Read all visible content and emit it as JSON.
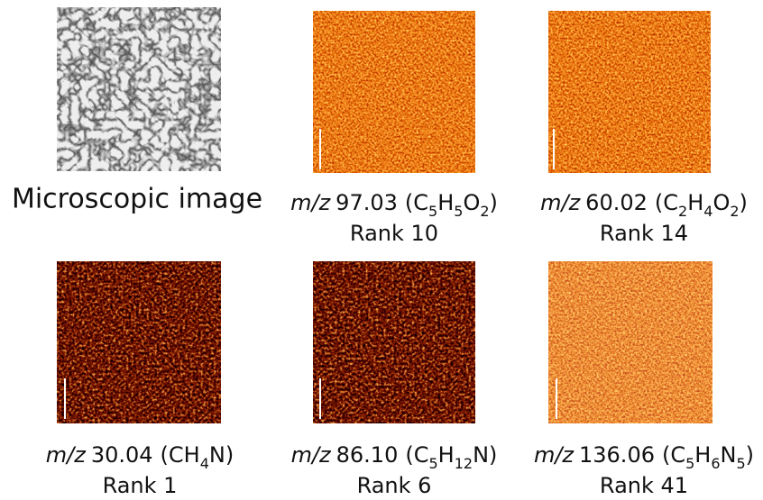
{
  "panels": [
    {
      "caption": "Microscopic image"
    },
    {
      "mz_label": "m/z",
      "mz": "97.03",
      "formula": [
        {
          "t": "(C",
          "sub": "5"
        },
        {
          "t": "H",
          "sub": "5"
        },
        {
          "t": "O",
          "sub": "2"
        },
        {
          "t": ")"
        }
      ],
      "rank": "Rank 10"
    },
    {
      "mz_label": "m/z",
      "mz": "60.02",
      "formula": [
        {
          "t": "(C",
          "sub": "2"
        },
        {
          "t": "H",
          "sub": "4"
        },
        {
          "t": "O",
          "sub": "2"
        },
        {
          "t": ")"
        }
      ],
      "rank": "Rank 14"
    },
    {
      "mz_label": "m/z",
      "mz": "30.04",
      "formula": [
        {
          "t": "(CH",
          "sub": "4"
        },
        {
          "t": "N)"
        }
      ],
      "rank": "Rank 1"
    },
    {
      "mz_label": "m/z",
      "mz": "86.10",
      "formula": [
        {
          "t": "(C",
          "sub": "5"
        },
        {
          "t": "H",
          "sub": "12"
        },
        {
          "t": "N)"
        }
      ],
      "rank": "Rank 6"
    },
    {
      "mz_label": "m/z",
      "mz": "136.06",
      "formula": [
        {
          "t": "(C",
          "sub": "5"
        },
        {
          "t": "H",
          "sub": "6"
        },
        {
          "t": "N",
          "sub": "5"
        },
        {
          "t": ")"
        }
      ],
      "rank": "Rank 41"
    }
  ]
}
